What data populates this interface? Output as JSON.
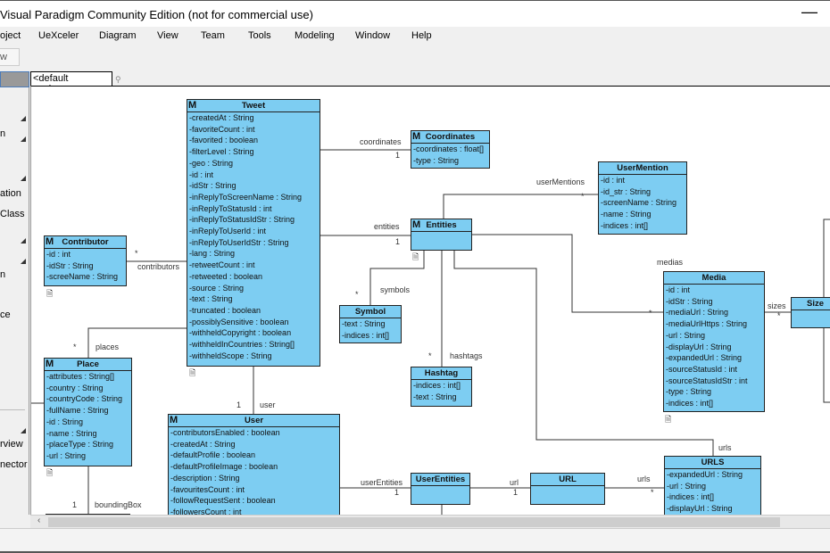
{
  "window": {
    "title": "Visual Paradigm Community Edition (not for commercial use)",
    "close_icon": "close-icon"
  },
  "menu": [
    "oject",
    "UeXceler",
    "Diagram",
    "View",
    "Team",
    "Tools",
    "Modeling",
    "Window",
    "Help"
  ],
  "breadcrumb": "w",
  "left_panel": {
    "items": [
      "n",
      "ation",
      "Class",
      "n",
      "ce",
      "rview",
      "nector"
    ]
  },
  "tab": {
    "label": "<default package>"
  },
  "classes": {
    "tweet": {
      "name": "Tweet",
      "attrs": [
        "-createdAt : String",
        "-favoriteCount : int",
        "-favorited : boolean",
        "-filterLevel : String",
        "-geo : String",
        "-id : int",
        "-idStr : String",
        "-inReplyToScreenName : String",
        "-inReplyToStatusId : int",
        "-inReplyToStatusIdStr : String",
        "-inReplyToUserId : int",
        "-inReplyToUserIdStr : String",
        "-lang : String",
        "-retweetCount : int",
        "-retweeted : boolean",
        "-source : String",
        "-text : String",
        "-truncated : boolean",
        "-possiblySensitive : boolean",
        "-withheldCopyright : boolean",
        "-withheldInCountries : String[]",
        "-withheldScope : String"
      ]
    },
    "coordinates": {
      "name": "Coordinates",
      "attrs": [
        "-coordinates : float[]",
        "-type : String"
      ]
    },
    "usermention": {
      "name": "UserMention",
      "attrs": [
        "-id : int",
        "-id_str : String",
        "-screenName : String",
        "-name : String",
        "-indices : int[]"
      ]
    },
    "entities": {
      "name": "Entities",
      "attrs": []
    },
    "contributor": {
      "name": "Contributor",
      "attrs": [
        "-id : int",
        "-idStr : String",
        "-screeName : String"
      ]
    },
    "symbol": {
      "name": "Symbol",
      "attrs": [
        "-text : String",
        "-indices : int[]"
      ]
    },
    "hashtag": {
      "name": "Hashtag",
      "attrs": [
        "-indices : int[]",
        "-text : String"
      ]
    },
    "media": {
      "name": "Media",
      "attrs": [
        "-id : int",
        "-idStr : String",
        "-mediaUrl : String",
        "-mediaUrlHttps : String",
        "-url : String",
        "-displayUrl : String",
        "-expandedUrl : String",
        "-sourceStatusId : int",
        "-sourceStatusIdStr : int",
        "-type : String",
        "-indices : int[]"
      ]
    },
    "size": {
      "name": "Size",
      "attrs": []
    },
    "place": {
      "name": "Place",
      "attrs": [
        "-attributes : String[]",
        "-country : String",
        "-countryCode : String",
        "-fullName : String",
        "-id : String",
        "-name : String",
        "-placeType : String",
        "-url : String"
      ]
    },
    "user": {
      "name": "User",
      "attrs": [
        "-contributorsEnabled : boolean",
        "-createdAt : String",
        "-defaultProfile : boolean",
        "-defaultProfileImage : boolean",
        "-description : String",
        "-favouritesCount : int",
        "-followRequestSent : boolean",
        "-followersCount : int"
      ]
    },
    "userentities": {
      "name": "UserEntities",
      "attrs": []
    },
    "url": {
      "name": "URL",
      "attrs": []
    },
    "urls": {
      "name": "URLS",
      "attrs": [
        "-expandedUrl : String",
        "-url : String",
        "-indices : int[]",
        "-displayUrl : String"
      ]
    },
    "boundingbox": {
      "name": "",
      "attrs": []
    }
  },
  "labels": {
    "coordinates": "coordinates",
    "coordinates_mult": "1",
    "entities": "entities",
    "entities_mult": "1",
    "userMentions": "userMentions",
    "userMentions_mult": "*",
    "medias": "medias",
    "medias_mult": "*",
    "symbols": "symbols",
    "symbols_mult": "*",
    "hashtags": "hashtags",
    "hashtags_mult": "*",
    "urls_top": "urls",
    "contributors": "contributors",
    "contributors_mult": "*",
    "places": "places",
    "places_mult": "*",
    "user": "user",
    "user_mult": "1",
    "boundingBox": "boundingBox",
    "boundingBox_mult": "1",
    "userEntities": "userEntities",
    "userEntities_mult": "1",
    "url": "url",
    "url_mult": "1",
    "urls": "urls",
    "urls_mult": "*",
    "sizes": "sizes",
    "sizes_mult": "*"
  },
  "colors": {
    "class_fill": "#7dcdf2",
    "class_border": "#222222"
  }
}
